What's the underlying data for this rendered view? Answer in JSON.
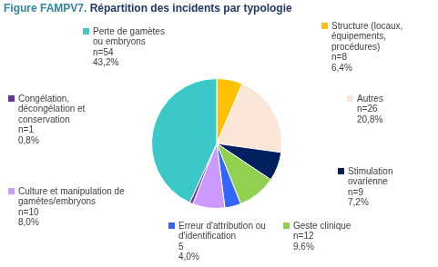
{
  "chart_data": {
    "type": "pie",
    "title": "Figure FAMPV7. Répartition des incidents par typologie",
    "categories": [
      "Structure (locaux, équipements, procédures)",
      "Autres",
      "Stimulation ovarienne",
      "Geste clinique",
      "Erreur d'attribution ou d'identification",
      "Culture et manipulation de gamètes/embryons",
      "Congélation, décongélation et conservation",
      "Perte de gamètes ou embryons"
    ],
    "values": [
      8,
      26,
      9,
      12,
      5,
      10,
      1,
      54
    ],
    "value_labels": [
      "n=8",
      "n=26",
      "n=9",
      "n=12",
      "5",
      "n=10",
      "n=1",
      "n=54"
    ],
    "percentages": [
      6.4,
      20.8,
      7.2,
      9.6,
      4.0,
      8.0,
      0.8,
      43.2
    ],
    "percentage_labels": [
      "6,4%",
      "20,8%",
      "7,2%",
      "9,6%",
      "4,0%",
      "8,0%",
      "0,8%",
      "43,2%"
    ],
    "colors": [
      "#ffc000",
      "#fbe5d6",
      "#002060",
      "#92d050",
      "#3366ff",
      "#cc99ff",
      "#7030a0",
      "#3cc8c8"
    ],
    "data_labels": true
  }
}
